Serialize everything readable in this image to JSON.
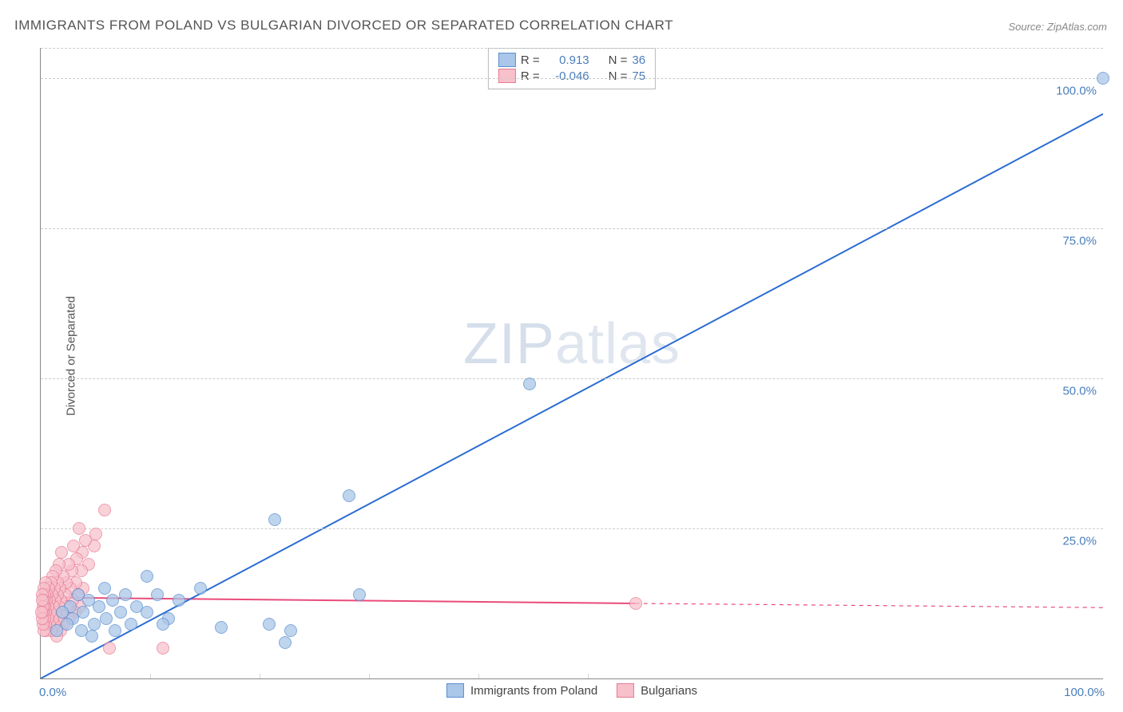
{
  "title": "IMMIGRANTS FROM POLAND VS BULGARIAN DIVORCED OR SEPARATED CORRELATION CHART",
  "source_prefix": "Source: ",
  "source": "ZipAtlas.com",
  "ylabel": "Divorced or Separated",
  "watermark_a": "ZIP",
  "watermark_b": "atlas",
  "chart": {
    "type": "scatter",
    "xlim": [
      0,
      100
    ],
    "ylim": [
      0,
      105
    ],
    "grid_color": "#cccccc",
    "axis_color": "#888888",
    "background_color": "#ffffff",
    "yticks": [
      25,
      50,
      75,
      100
    ],
    "ytick_labels": [
      "25.0%",
      "50.0%",
      "75.0%",
      "100.0%"
    ],
    "xticks_minor": [
      10.3,
      20.6,
      30.9,
      41.2,
      51.5
    ],
    "xtick_left": "0.0%",
    "xtick_right": "100.0%",
    "tick_label_color": "#4a7ebb",
    "series": [
      {
        "key": "poland",
        "label": "Immigrants from Poland",
        "marker_fill": "#aac6e8",
        "marker_stroke": "#5b8fd0",
        "marker_opacity": 0.75,
        "marker_radius": 7,
        "line_color": "#2b6cd4",
        "line_width": 2,
        "R": "0.913",
        "N": "36",
        "trend": {
          "x1": 0,
          "y1": 0,
          "x2": 100,
          "y2": 94
        },
        "points": [
          [
            100,
            100
          ],
          [
            46,
            49
          ],
          [
            29,
            30.5
          ],
          [
            22,
            26.5
          ],
          [
            21.5,
            9
          ],
          [
            23.5,
            8
          ],
          [
            23,
            6
          ],
          [
            30,
            14
          ],
          [
            17,
            8.5
          ],
          [
            15,
            15
          ],
          [
            13,
            13
          ],
          [
            12,
            10
          ],
          [
            11,
            14
          ],
          [
            11.5,
            9
          ],
          [
            10,
            11
          ],
          [
            10,
            17
          ],
          [
            9,
            12
          ],
          [
            8.5,
            9
          ],
          [
            8,
            14
          ],
          [
            7.5,
            11
          ],
          [
            7,
            8
          ],
          [
            6.8,
            13
          ],
          [
            6.2,
            10
          ],
          [
            6,
            15
          ],
          [
            5.5,
            12
          ],
          [
            5,
            9
          ],
          [
            4.8,
            7
          ],
          [
            4.5,
            13
          ],
          [
            4,
            11
          ],
          [
            3.8,
            8
          ],
          [
            3.5,
            14
          ],
          [
            3,
            10
          ],
          [
            2.8,
            12
          ],
          [
            2.5,
            9
          ],
          [
            2,
            11
          ],
          [
            1.5,
            8
          ]
        ]
      },
      {
        "key": "bulgarians",
        "label": "Bulgarians",
        "marker_fill": "#f7c0cb",
        "marker_stroke": "#e77a93",
        "marker_opacity": 0.72,
        "marker_radius": 7,
        "line_color": "#e94b7a",
        "line_width": 2,
        "R": "-0.046",
        "N": "75",
        "trend": {
          "x1": 0,
          "y1": 13.5,
          "x2": 56,
          "y2": 12.5
        },
        "trend_dash": {
          "x1": 56,
          "y1": 12.5,
          "x2": 100,
          "y2": 11.8
        },
        "points": [
          [
            56,
            12.5
          ],
          [
            11.5,
            5
          ],
          [
            6.5,
            5
          ],
          [
            6,
            28
          ],
          [
            5,
            22
          ],
          [
            5.2,
            24
          ],
          [
            4.5,
            19
          ],
          [
            4.2,
            23
          ],
          [
            4,
            15
          ],
          [
            3.9,
            21
          ],
          [
            3.8,
            18
          ],
          [
            3.7,
            12
          ],
          [
            3.6,
            25
          ],
          [
            3.5,
            14
          ],
          [
            3.4,
            20
          ],
          [
            3.3,
            16
          ],
          [
            3.2,
            11
          ],
          [
            3.1,
            22
          ],
          [
            3,
            13
          ],
          [
            2.9,
            18
          ],
          [
            2.8,
            15
          ],
          [
            2.7,
            10
          ],
          [
            2.6,
            19
          ],
          [
            2.5,
            12
          ],
          [
            2.4,
            16
          ],
          [
            2.3,
            14
          ],
          [
            2.2,
            9
          ],
          [
            2.1,
            17
          ],
          [
            2,
            11
          ],
          [
            1.95,
            21
          ],
          [
            1.9,
            13
          ],
          [
            1.85,
            8
          ],
          [
            1.8,
            15
          ],
          [
            1.75,
            19
          ],
          [
            1.7,
            12
          ],
          [
            1.65,
            10
          ],
          [
            1.6,
            16
          ],
          [
            1.55,
            14
          ],
          [
            1.5,
            7
          ],
          [
            1.45,
            18
          ],
          [
            1.4,
            11
          ],
          [
            1.35,
            13
          ],
          [
            1.3,
            9
          ],
          [
            1.25,
            15
          ],
          [
            1.2,
            12
          ],
          [
            1.15,
            17
          ],
          [
            1.1,
            10
          ],
          [
            1.05,
            14
          ],
          [
            1,
            8
          ],
          [
            0.95,
            16
          ],
          [
            0.9,
            11
          ],
          [
            0.85,
            13
          ],
          [
            0.8,
            9
          ],
          [
            0.75,
            15
          ],
          [
            0.7,
            12
          ],
          [
            0.65,
            10
          ],
          [
            0.6,
            14
          ],
          [
            0.55,
            8
          ],
          [
            0.5,
            13
          ],
          [
            0.48,
            11
          ],
          [
            0.45,
            16
          ],
          [
            0.42,
            9
          ],
          [
            0.4,
            12
          ],
          [
            0.38,
            14
          ],
          [
            0.35,
            10
          ],
          [
            0.32,
            13
          ],
          [
            0.3,
            8
          ],
          [
            0.28,
            15
          ],
          [
            0.25,
            11
          ],
          [
            0.22,
            9
          ],
          [
            0.2,
            12
          ],
          [
            0.18,
            14
          ],
          [
            0.15,
            10
          ],
          [
            0.12,
            13
          ],
          [
            0.1,
            11
          ]
        ]
      }
    ]
  },
  "legend_labels": {
    "R_eq": "R =",
    "N_eq": "N ="
  }
}
